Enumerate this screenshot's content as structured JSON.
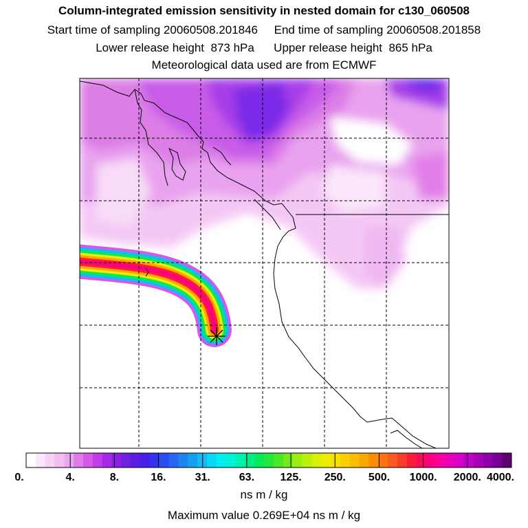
{
  "header": {
    "title": "Column-integrated emission sensitivity in nested domain for c130_060508",
    "start_label": "Start time of sampling",
    "start_value": "20060508.201846",
    "end_label": "End time of sampling",
    "end_value": "20060508.201858",
    "lower_label": "Lower release height",
    "lower_value": "873 hPa",
    "upper_label": "Upper release height",
    "upper_value": "865 hPa",
    "met_line": "Meteorological data used are from ECMWF"
  },
  "colorbar": {
    "tick_labels": [
      "0.",
      "4.",
      "8.",
      "16.",
      "31.",
      "63.",
      "125.",
      "250.",
      "500.",
      "1000.",
      "2000.",
      "4000."
    ],
    "colors": [
      "#ffffff",
      "#fbe6fb",
      "#f7d2f7",
      "#f2bef2",
      "#eaa6f0",
      "#e07ce8",
      "#d558ea",
      "#c43ce8",
      "#a828e8",
      "#8c1ee6",
      "#7020e0",
      "#5a1ee0",
      "#4620ea",
      "#3232f0",
      "#2a4cf4",
      "#2a66f4",
      "#1e84f0",
      "#14a0f0",
      "#10bcf2",
      "#08d8f4",
      "#00eef2",
      "#00f2d8",
      "#00f0b0",
      "#00ec88",
      "#06ea5a",
      "#22e83c",
      "#4ce828",
      "#74ea1c",
      "#9aee10",
      "#bcf00c",
      "#d8f008",
      "#ecec04",
      "#fae200",
      "#fcd000",
      "#fcbc00",
      "#fca600",
      "#fc8c00",
      "#fc7410",
      "#fc5a1e",
      "#fc3c2a",
      "#fc1e38",
      "#fc0a5a",
      "#fc0080",
      "#f800a0",
      "#e800b8",
      "#d800c8",
      "#c000c8",
      "#a800b8",
      "#9000a8",
      "#780098",
      "#600070"
    ],
    "unit": "ns m / kg",
    "max_label": "Maximum value",
    "max_value": "0.269E+04 ns m / kg"
  }
}
